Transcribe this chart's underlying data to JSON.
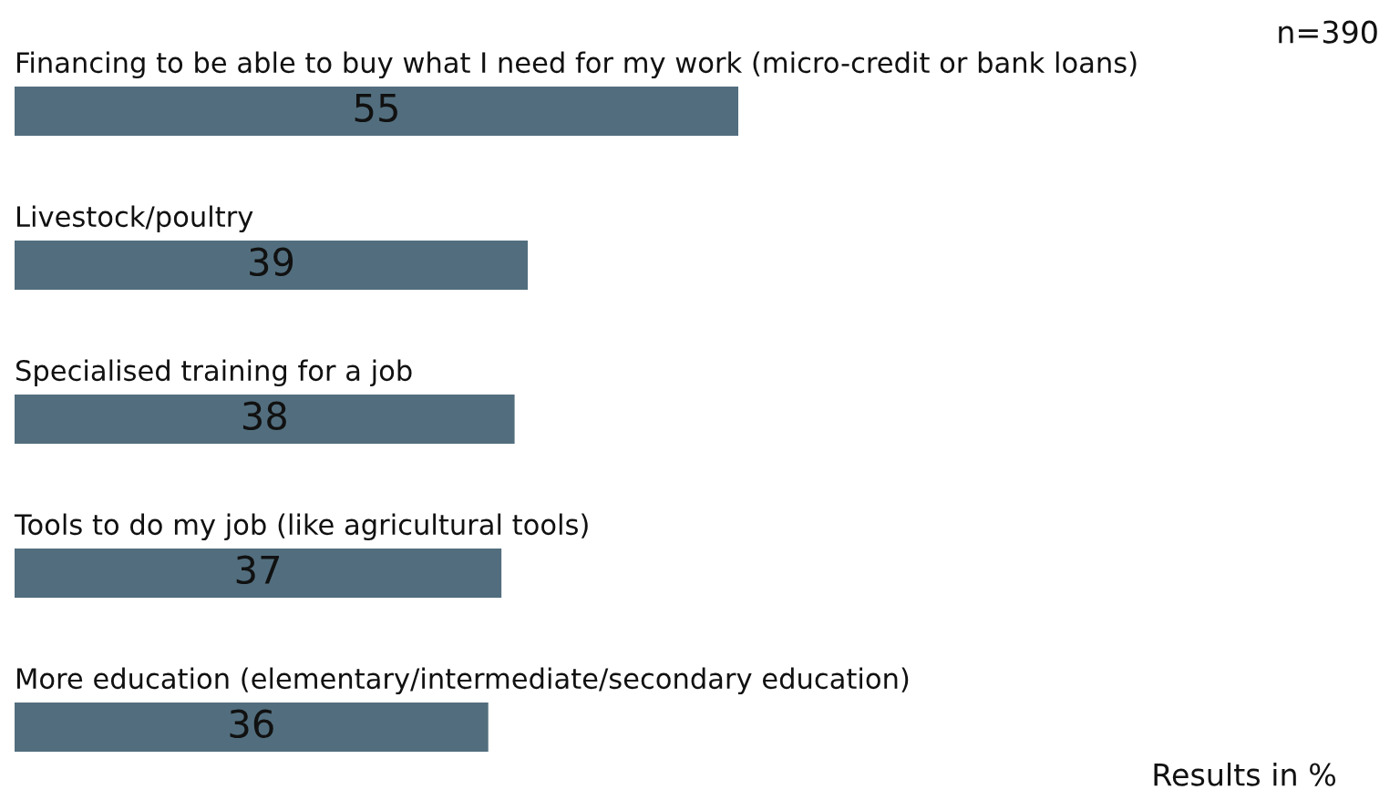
{
  "chart_data": {
    "type": "bar",
    "orientation": "horizontal",
    "categories": [
      "Financing to be able to buy what I need for my work (micro-credit or bank loans)",
      "Livestock/poultry",
      "Specialised training for a job",
      "Tools to do my job (like agricultural tools)",
      "More education (elementary/intermediate/secondary education)"
    ],
    "values": [
      55,
      39,
      38,
      37,
      36
    ],
    "color": "#526e7e",
    "data_labels": true,
    "annotations": [
      "n=390",
      "Results in %"
    ]
  }
}
